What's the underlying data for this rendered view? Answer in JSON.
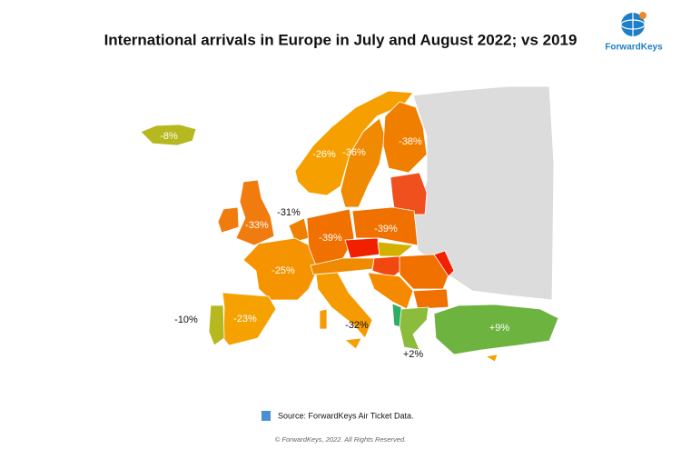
{
  "title": "International arrivals in Europe in July and August 2022; vs 2019",
  "logo": "ForwardKeys",
  "labels": [
    "-8%",
    "-26%",
    "-36%",
    "-38%",
    "-31%",
    "-33%",
    "-39%",
    "-39%",
    "-25%",
    "-10%",
    "-23%",
    "-32%",
    "+9%",
    "+2%"
  ],
  "source": "Source: ForwardKeys Air Ticket Data.",
  "copyright": "© ForwardKeys, 2022. All Rights Reserved."
}
